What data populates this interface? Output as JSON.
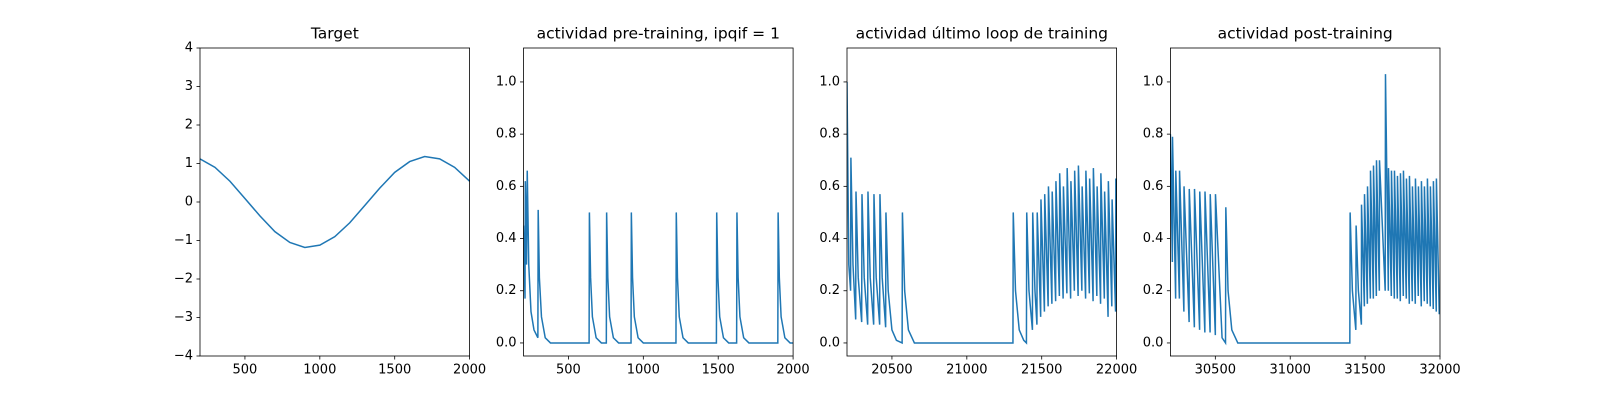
{
  "chart_data": [
    {
      "type": "line",
      "title": "Target",
      "color": "#1f77b4",
      "x": [
        200,
        300,
        400,
        500,
        600,
        700,
        800,
        900,
        1000,
        1100,
        1200,
        1300,
        1400,
        1500,
        1600,
        1700,
        1800,
        1900,
        2000
      ],
      "values": [
        1.12,
        0.9,
        0.54,
        0.09,
        -0.36,
        -0.77,
        -1.05,
        -1.18,
        -1.12,
        -0.9,
        -0.54,
        -0.09,
        0.36,
        0.77,
        1.05,
        1.18,
        1.12,
        0.9,
        0.54
      ],
      "xlim": [
        200,
        2000
      ],
      "xticks": [
        500,
        1000,
        1500,
        2000
      ],
      "ylim": [
        -4,
        4
      ],
      "yticks": [
        {
          "value": -4,
          "label": "−4"
        },
        {
          "value": -3,
          "label": "−3"
        },
        {
          "value": -2,
          "label": "−2"
        },
        {
          "value": -1,
          "label": "−1"
        },
        0,
        1,
        2,
        3,
        4
      ]
    },
    {
      "type": "line",
      "title": "actividad pre-training, ipqif = 1",
      "color": "#1f77b4",
      "x": [
        200,
        210,
        212,
        220,
        225,
        235,
        250,
        270,
        296,
        298,
        306,
        320,
        345,
        380,
        638,
        640,
        648,
        660,
        685,
        720,
        753,
        755,
        763,
        775,
        800,
        835,
        918,
        920,
        928,
        940,
        965,
        1000,
        1218,
        1220,
        1228,
        1240,
        1265,
        1300,
        1488,
        1490,
        1498,
        1510,
        1535,
        1570,
        1623,
        1625,
        1633,
        1645,
        1670,
        1705,
        1898,
        1900,
        1908,
        1920,
        1945,
        1980,
        2000
      ],
      "values": [
        0.45,
        0.17,
        0.62,
        0.3,
        0.66,
        0.3,
        0.12,
        0.05,
        0.02,
        0.51,
        0.25,
        0.1,
        0.02,
        0.0,
        0.0,
        0.5,
        0.25,
        0.1,
        0.02,
        0.0,
        0.0,
        0.5,
        0.25,
        0.1,
        0.02,
        0.0,
        0.0,
        0.5,
        0.25,
        0.1,
        0.02,
        0.0,
        0.0,
        0.5,
        0.25,
        0.1,
        0.02,
        0.0,
        0.0,
        0.5,
        0.25,
        0.1,
        0.02,
        0.0,
        0.0,
        0.5,
        0.25,
        0.1,
        0.02,
        0.0,
        0.0,
        0.5,
        0.25,
        0.1,
        0.02,
        0.0,
        0.0
      ],
      "xlim": [
        200,
        2000
      ],
      "xticks": [
        500,
        1000,
        1500,
        2000
      ],
      "ylim": [
        -0.05,
        1.13
      ],
      "yticks": [
        {
          "value": 0,
          "label": "0.0"
        },
        0.2,
        0.4,
        0.6,
        0.8,
        {
          "value": 1,
          "label": "1.0"
        }
      ]
    },
    {
      "type": "line",
      "title": "actividad último loop de training",
      "color": "#1f77b4",
      "x": [
        20200,
        20212,
        20224,
        20226,
        20240,
        20258,
        20260,
        20275,
        20298,
        20300,
        20315,
        20338,
        20340,
        20355,
        20378,
        20380,
        20395,
        20418,
        20420,
        20435,
        20458,
        20460,
        20475,
        20500,
        20530,
        20568,
        20570,
        20585,
        20610,
        20650,
        21308,
        21310,
        21325,
        21350,
        21380,
        21398,
        21400,
        21415,
        21438,
        21440,
        21455,
        21468,
        21470,
        21493,
        21495,
        21518,
        21520,
        21543,
        21545,
        21568,
        21570,
        21593,
        21595,
        21618,
        21620,
        21643,
        21645,
        21668,
        21670,
        21693,
        21695,
        21718,
        21720,
        21743,
        21745,
        21768,
        21770,
        21793,
        21795,
        21818,
        21820,
        21843,
        21845,
        21868,
        21870,
        21893,
        21895,
        21918,
        21920,
        21943,
        21945,
        21968,
        21970,
        21993,
        21995,
        22000
      ],
      "values": [
        1.0,
        0.3,
        0.2,
        0.71,
        0.3,
        0.09,
        0.58,
        0.25,
        0.08,
        0.57,
        0.25,
        0.07,
        0.58,
        0.25,
        0.07,
        0.57,
        0.25,
        0.07,
        0.57,
        0.25,
        0.06,
        0.5,
        0.2,
        0.05,
        0.01,
        0.0,
        0.5,
        0.2,
        0.05,
        0.0,
        0.0,
        0.5,
        0.2,
        0.05,
        0.01,
        0.0,
        0.5,
        0.2,
        0.05,
        0.5,
        0.2,
        0.07,
        0.5,
        0.1,
        0.55,
        0.12,
        0.57,
        0.14,
        0.6,
        0.15,
        0.58,
        0.16,
        0.62,
        0.18,
        0.65,
        0.17,
        0.6,
        0.19,
        0.67,
        0.17,
        0.62,
        0.2,
        0.66,
        0.18,
        0.68,
        0.2,
        0.6,
        0.17,
        0.66,
        0.19,
        0.63,
        0.16,
        0.67,
        0.18,
        0.6,
        0.15,
        0.65,
        0.17,
        0.58,
        0.1,
        0.62,
        0.14,
        0.55,
        0.12,
        0.63,
        0.3
      ],
      "xlim": [
        20200,
        22000
      ],
      "xticks": [
        20500,
        21000,
        21500,
        22000
      ],
      "ylim": [
        -0.05,
        1.13
      ],
      "yticks": [
        {
          "value": 0,
          "label": "0.0"
        },
        0.2,
        0.4,
        0.6,
        0.8,
        {
          "value": 1,
          "label": "1.0"
        }
      ]
    },
    {
      "type": "line",
      "title": "actividad post-training",
      "color": "#1f77b4",
      "x": [
        30200,
        30213,
        30214,
        30235,
        30236,
        30260,
        30261,
        30290,
        30291,
        30325,
        30326,
        30360,
        30361,
        30395,
        30396,
        30430,
        30431,
        30465,
        30466,
        30500,
        30501,
        30545,
        30568,
        30570,
        30585,
        30610,
        30650,
        31398,
        31400,
        31415,
        31438,
        31440,
        31455,
        31475,
        31476,
        31495,
        31496,
        31515,
        31516,
        31535,
        31536,
        31555,
        31556,
        31575,
        31576,
        31595,
        31596,
        31634,
        31636,
        31655,
        31656,
        31675,
        31676,
        31695,
        31696,
        31715,
        31716,
        31735,
        31736,
        31755,
        31756,
        31775,
        31776,
        31795,
        31796,
        31815,
        31816,
        31835,
        31836,
        31855,
        31856,
        31875,
        31876,
        31895,
        31896,
        31915,
        31916,
        31935,
        31936,
        31955,
        31956,
        31975,
        31976,
        31995
      ],
      "values": [
        0.8,
        0.31,
        0.79,
        0.17,
        0.66,
        0.17,
        0.66,
        0.12,
        0.6,
        0.08,
        0.59,
        0.06,
        0.59,
        0.05,
        0.58,
        0.04,
        0.58,
        0.04,
        0.57,
        0.03,
        0.57,
        0.02,
        0.0,
        0.52,
        0.2,
        0.05,
        0.0,
        0.0,
        0.5,
        0.2,
        0.05,
        0.45,
        0.2,
        0.07,
        0.53,
        0.14,
        0.57,
        0.15,
        0.6,
        0.17,
        0.66,
        0.17,
        0.68,
        0.18,
        0.7,
        0.2,
        0.7,
        0.2,
        1.03,
        0.2,
        0.67,
        0.18,
        0.66,
        0.17,
        0.66,
        0.17,
        0.64,
        0.16,
        0.65,
        0.18,
        0.66,
        0.17,
        0.63,
        0.15,
        0.64,
        0.16,
        0.6,
        0.15,
        0.63,
        0.18,
        0.6,
        0.14,
        0.62,
        0.16,
        0.6,
        0.15,
        0.63,
        0.14,
        0.6,
        0.13,
        0.62,
        0.12,
        0.63,
        0.11
      ],
      "xlim": [
        30200,
        32000
      ],
      "xticks": [
        30500,
        31000,
        31500,
        32000
      ],
      "ylim": [
        -0.05,
        1.13
      ],
      "yticks": [
        {
          "value": 0,
          "label": "0.0"
        },
        0.2,
        0.4,
        0.6,
        0.8,
        {
          "value": 1,
          "label": "1.0"
        }
      ]
    }
  ]
}
